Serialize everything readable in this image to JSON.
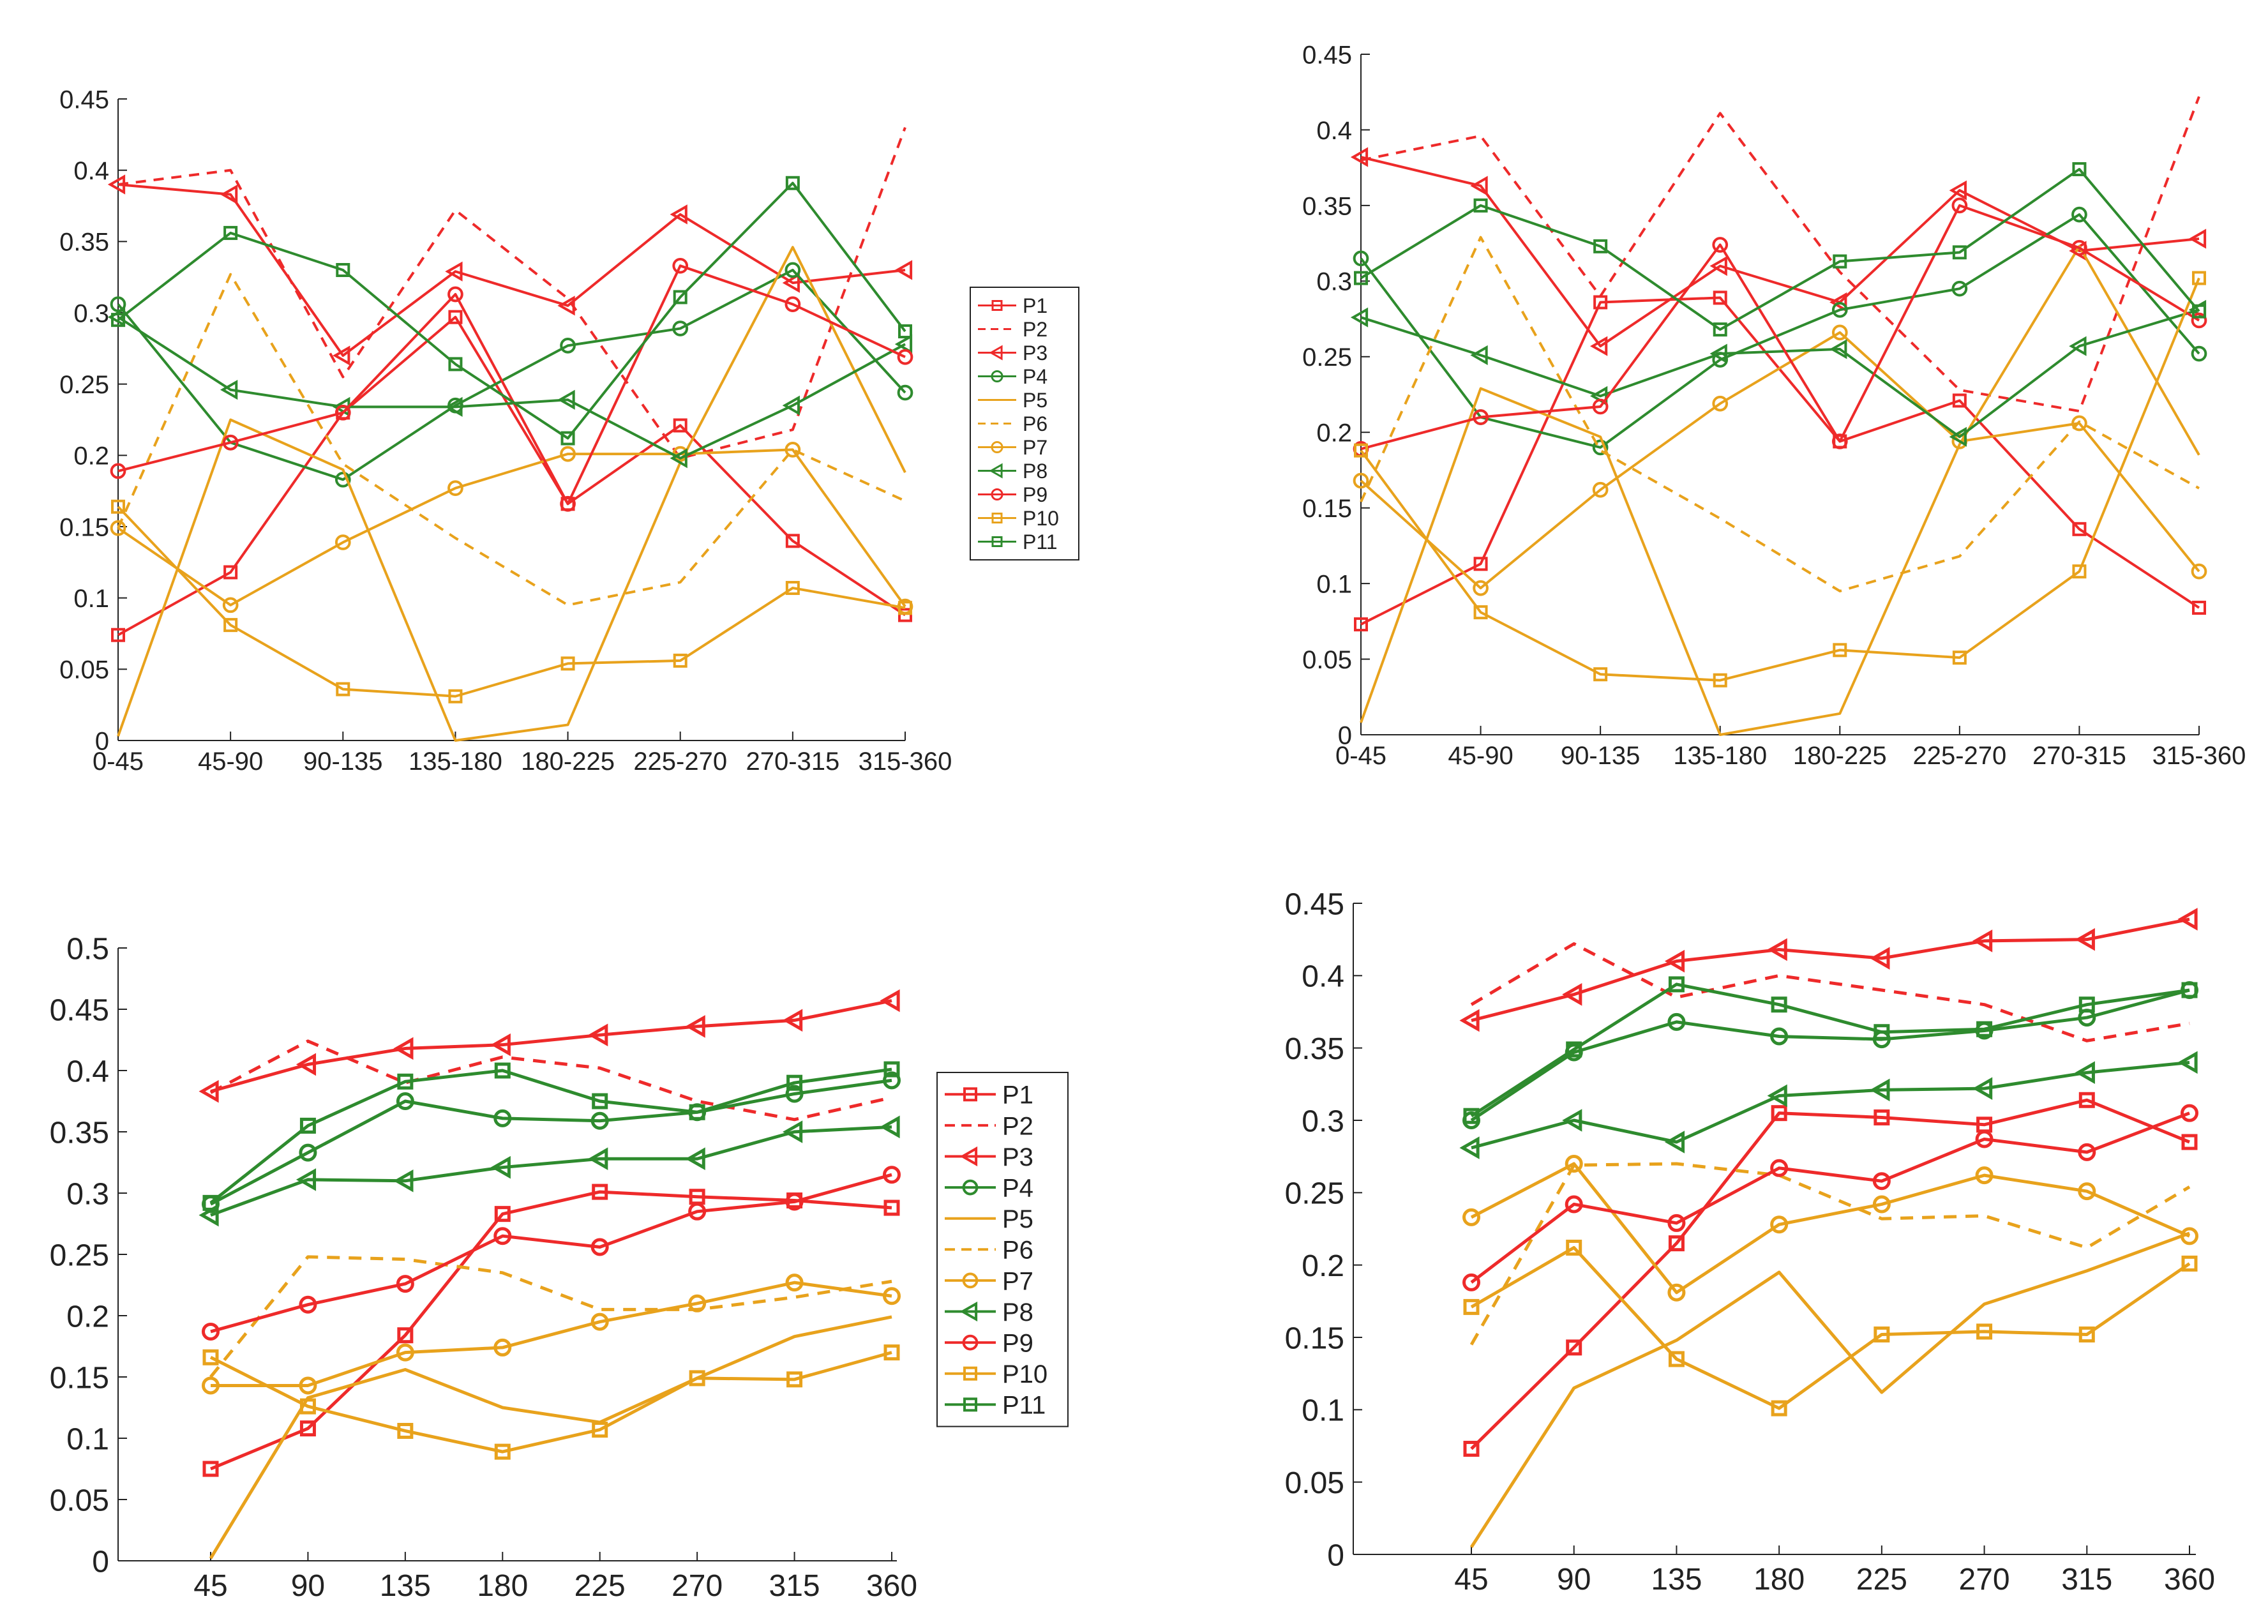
{
  "styles": {
    "colors": {
      "red": "#ee2a2a",
      "green": "#2e8b2e",
      "orange": "#e8a21c"
    },
    "P1": {
      "color": "red",
      "dash": false,
      "marker": "square"
    },
    "P2": {
      "color": "red",
      "dash": true,
      "marker": "none"
    },
    "P3": {
      "color": "red",
      "dash": false,
      "marker": "triangle-left"
    },
    "P4": {
      "color": "green",
      "dash": false,
      "marker": "circle"
    },
    "P5": {
      "color": "orange",
      "dash": false,
      "marker": "none"
    },
    "P6": {
      "color": "orange",
      "dash": true,
      "marker": "none"
    },
    "P7": {
      "color": "orange",
      "dash": false,
      "marker": "circle"
    },
    "P8": {
      "color": "green",
      "dash": false,
      "marker": "triangle-left"
    },
    "P9": {
      "color": "red",
      "dash": false,
      "marker": "circle"
    },
    "P10": {
      "color": "orange",
      "dash": false,
      "marker": "square"
    },
    "P11": {
      "color": "green",
      "dash": false,
      "marker": "square"
    }
  },
  "chart_data": [
    {
      "type": "line",
      "categories": [
        "0-45",
        "45-90",
        "90-135",
        "135-180",
        "180-225",
        "225-270",
        "270-315",
        "315-360"
      ],
      "ylim": [
        0,
        0.45
      ],
      "yticks": [
        "0",
        "0.05",
        "0.1",
        "0.15",
        "0.2",
        "0.25",
        "0.3",
        "0.35",
        "0.4",
        "0.45"
      ],
      "legend": "right-outside",
      "series": [
        {
          "name": "P1",
          "values": [
            0.074,
            0.118,
            0.23,
            0.297,
            0.166,
            0.221,
            0.14,
            0.088
          ]
        },
        {
          "name": "P2",
          "values": [
            0.39,
            0.4,
            0.255,
            0.372,
            0.31,
            0.198,
            0.218,
            0.43
          ]
        },
        {
          "name": "P3",
          "values": [
            0.39,
            0.383,
            0.27,
            0.329,
            0.305,
            0.369,
            0.321,
            0.33
          ]
        },
        {
          "name": "P4",
          "values": [
            0.306,
            0.209,
            0.183,
            0.235,
            0.277,
            0.289,
            0.33,
            0.244
          ]
        },
        {
          "name": "P5",
          "values": [
            0.003,
            0.225,
            0.19,
            0.0,
            0.011,
            0.195,
            0.346,
            0.188
          ]
        },
        {
          "name": "P6",
          "values": [
            0.149,
            0.327,
            0.194,
            0.142,
            0.095,
            0.111,
            0.204,
            0.168
          ]
        },
        {
          "name": "P7",
          "values": [
            0.149,
            0.095,
            0.139,
            0.177,
            0.201,
            0.201,
            0.204,
            0.094
          ]
        },
        {
          "name": "P8",
          "values": [
            0.297,
            0.246,
            0.234,
            0.234,
            0.239,
            0.198,
            0.235,
            0.278
          ]
        },
        {
          "name": "P9",
          "values": [
            0.189,
            0.209,
            0.23,
            0.313,
            0.166,
            0.333,
            0.306,
            0.269
          ]
        },
        {
          "name": "P10",
          "values": [
            0.164,
            0.081,
            0.036,
            0.031,
            0.054,
            0.056,
            0.107,
            0.093
          ]
        },
        {
          "name": "P11",
          "values": [
            0.295,
            0.356,
            0.33,
            0.264,
            0.212,
            0.311,
            0.391,
            0.287
          ]
        }
      ]
    },
    {
      "type": "line",
      "categories": [
        "0-45",
        "45-90",
        "90-135",
        "135-180",
        "180-225",
        "225-270",
        "270-315",
        "315-360"
      ],
      "ylim": [
        0,
        0.45
      ],
      "yticks": [
        "0",
        "0.05",
        "0.1",
        "0.15",
        "0.2",
        "0.25",
        "0.3",
        "0.35",
        "0.4",
        "0.45"
      ],
      "legend": "none",
      "series": [
        {
          "name": "P1",
          "values": [
            0.073,
            0.113,
            0.286,
            0.289,
            0.194,
            0.221,
            0.136,
            0.084
          ]
        },
        {
          "name": "P2",
          "values": [
            0.38,
            0.396,
            0.29,
            0.411,
            0.306,
            0.228,
            0.214,
            0.422
          ]
        },
        {
          "name": "P3",
          "values": [
            0.382,
            0.363,
            0.257,
            0.31,
            0.286,
            0.36,
            0.32,
            0.328
          ]
        },
        {
          "name": "P4",
          "values": [
            0.315,
            0.21,
            0.19,
            0.248,
            0.281,
            0.295,
            0.344,
            0.252
          ]
        },
        {
          "name": "P5",
          "values": [
            0.008,
            0.229,
            0.197,
            0.0,
            0.014,
            0.192,
            0.323,
            0.185
          ]
        },
        {
          "name": "P6",
          "values": [
            0.154,
            0.329,
            0.188,
            0.143,
            0.095,
            0.118,
            0.207,
            0.163
          ]
        },
        {
          "name": "P7",
          "values": [
            0.168,
            0.097,
            0.162,
            0.219,
            0.266,
            0.194,
            0.206,
            0.108
          ]
        },
        {
          "name": "P8",
          "values": [
            0.276,
            0.251,
            0.224,
            0.252,
            0.255,
            0.197,
            0.257,
            0.281
          ]
        },
        {
          "name": "P9",
          "values": [
            0.189,
            0.21,
            0.217,
            0.324,
            0.194,
            0.35,
            0.322,
            0.274
          ]
        },
        {
          "name": "P10",
          "values": [
            0.188,
            0.081,
            0.04,
            0.036,
            0.056,
            0.051,
            0.108,
            0.302
          ]
        },
        {
          "name": "P11",
          "values": [
            0.302,
            0.35,
            0.323,
            0.268,
            0.313,
            0.319,
            0.374,
            0.28
          ]
        }
      ]
    },
    {
      "type": "line",
      "categories": [
        "45",
        "90",
        "135",
        "180",
        "225",
        "270",
        "315",
        "360"
      ],
      "ylim": [
        0,
        0.5
      ],
      "yticks": [
        "0",
        "0.05",
        "0.1",
        "0.15",
        "0.2",
        "0.25",
        "0.3",
        "0.35",
        "0.4",
        "0.45",
        "0.5"
      ],
      "legend": "right-outside",
      "series": [
        {
          "name": "P1",
          "values": [
            0.075,
            0.108,
            0.184,
            0.283,
            0.301,
            0.297,
            0.294,
            0.288
          ]
        },
        {
          "name": "P2",
          "values": [
            0.382,
            0.424,
            0.39,
            0.411,
            0.402,
            0.375,
            0.36,
            0.378
          ]
        },
        {
          "name": "P3",
          "values": [
            0.383,
            0.405,
            0.418,
            0.421,
            0.429,
            0.436,
            0.441,
            0.457
          ]
        },
        {
          "name": "P4",
          "values": [
            0.291,
            0.333,
            0.375,
            0.361,
            0.359,
            0.366,
            0.381,
            0.392
          ]
        },
        {
          "name": "P5",
          "values": [
            0.002,
            0.133,
            0.156,
            0.125,
            0.113,
            0.149,
            0.183,
            0.199
          ]
        },
        {
          "name": "P6",
          "values": [
            0.15,
            0.248,
            0.246,
            0.235,
            0.205,
            0.205,
            0.215,
            0.228
          ]
        },
        {
          "name": "P7",
          "values": [
            0.143,
            0.143,
            0.17,
            0.174,
            0.195,
            0.21,
            0.227,
            0.216
          ]
        },
        {
          "name": "P8",
          "values": [
            0.282,
            0.311,
            0.31,
            0.321,
            0.328,
            0.328,
            0.35,
            0.354
          ]
        },
        {
          "name": "P9",
          "values": [
            0.187,
            0.209,
            0.226,
            0.265,
            0.256,
            0.285,
            0.293,
            0.315
          ]
        },
        {
          "name": "P10",
          "values": [
            0.166,
            0.126,
            0.106,
            0.089,
            0.107,
            0.149,
            0.148,
            0.17
          ]
        },
        {
          "name": "P11",
          "values": [
            0.292,
            0.355,
            0.391,
            0.4,
            0.375,
            0.366,
            0.39,
            0.401
          ]
        }
      ]
    },
    {
      "type": "line",
      "categories": [
        "45",
        "90",
        "135",
        "180",
        "225",
        "270",
        "315",
        "360"
      ],
      "ylim": [
        0,
        0.45
      ],
      "yticks": [
        "0",
        "0.05",
        "0.1",
        "0.15",
        "0.2",
        "0.25",
        "0.3",
        "0.35",
        "0.4",
        "0.45"
      ],
      "legend": "none",
      "series": [
        {
          "name": "P1",
          "values": [
            0.073,
            0.143,
            0.215,
            0.305,
            0.302,
            0.297,
            0.314,
            0.285
          ]
        },
        {
          "name": "P2",
          "values": [
            0.38,
            0.422,
            0.385,
            0.4,
            0.39,
            0.38,
            0.355,
            0.367
          ]
        },
        {
          "name": "P3",
          "values": [
            0.369,
            0.387,
            0.41,
            0.418,
            0.412,
            0.424,
            0.425,
            0.439
          ]
        },
        {
          "name": "P4",
          "values": [
            0.3,
            0.347,
            0.368,
            0.358,
            0.356,
            0.362,
            0.371,
            0.39
          ]
        },
        {
          "name": "P5",
          "values": [
            0.005,
            0.115,
            0.148,
            0.195,
            0.112,
            0.173,
            0.196,
            0.222
          ]
        },
        {
          "name": "P6",
          "values": [
            0.145,
            0.269,
            0.27,
            0.262,
            0.232,
            0.234,
            0.212,
            0.254
          ]
        },
        {
          "name": "P7",
          "values": [
            0.233,
            0.27,
            0.181,
            0.228,
            0.242,
            0.262,
            0.251,
            0.22
          ]
        },
        {
          "name": "P8",
          "values": [
            0.281,
            0.3,
            0.285,
            0.317,
            0.321,
            0.322,
            0.333,
            0.34
          ]
        },
        {
          "name": "P9",
          "values": [
            0.188,
            0.242,
            0.229,
            0.267,
            0.258,
            0.287,
            0.278,
            0.305
          ]
        },
        {
          "name": "P10",
          "values": [
            0.171,
            0.212,
            0.135,
            0.101,
            0.152,
            0.154,
            0.152,
            0.201
          ]
        },
        {
          "name": "P11",
          "values": [
            0.303,
            0.349,
            0.394,
            0.38,
            0.361,
            0.363,
            0.38,
            0.39
          ]
        }
      ]
    }
  ]
}
